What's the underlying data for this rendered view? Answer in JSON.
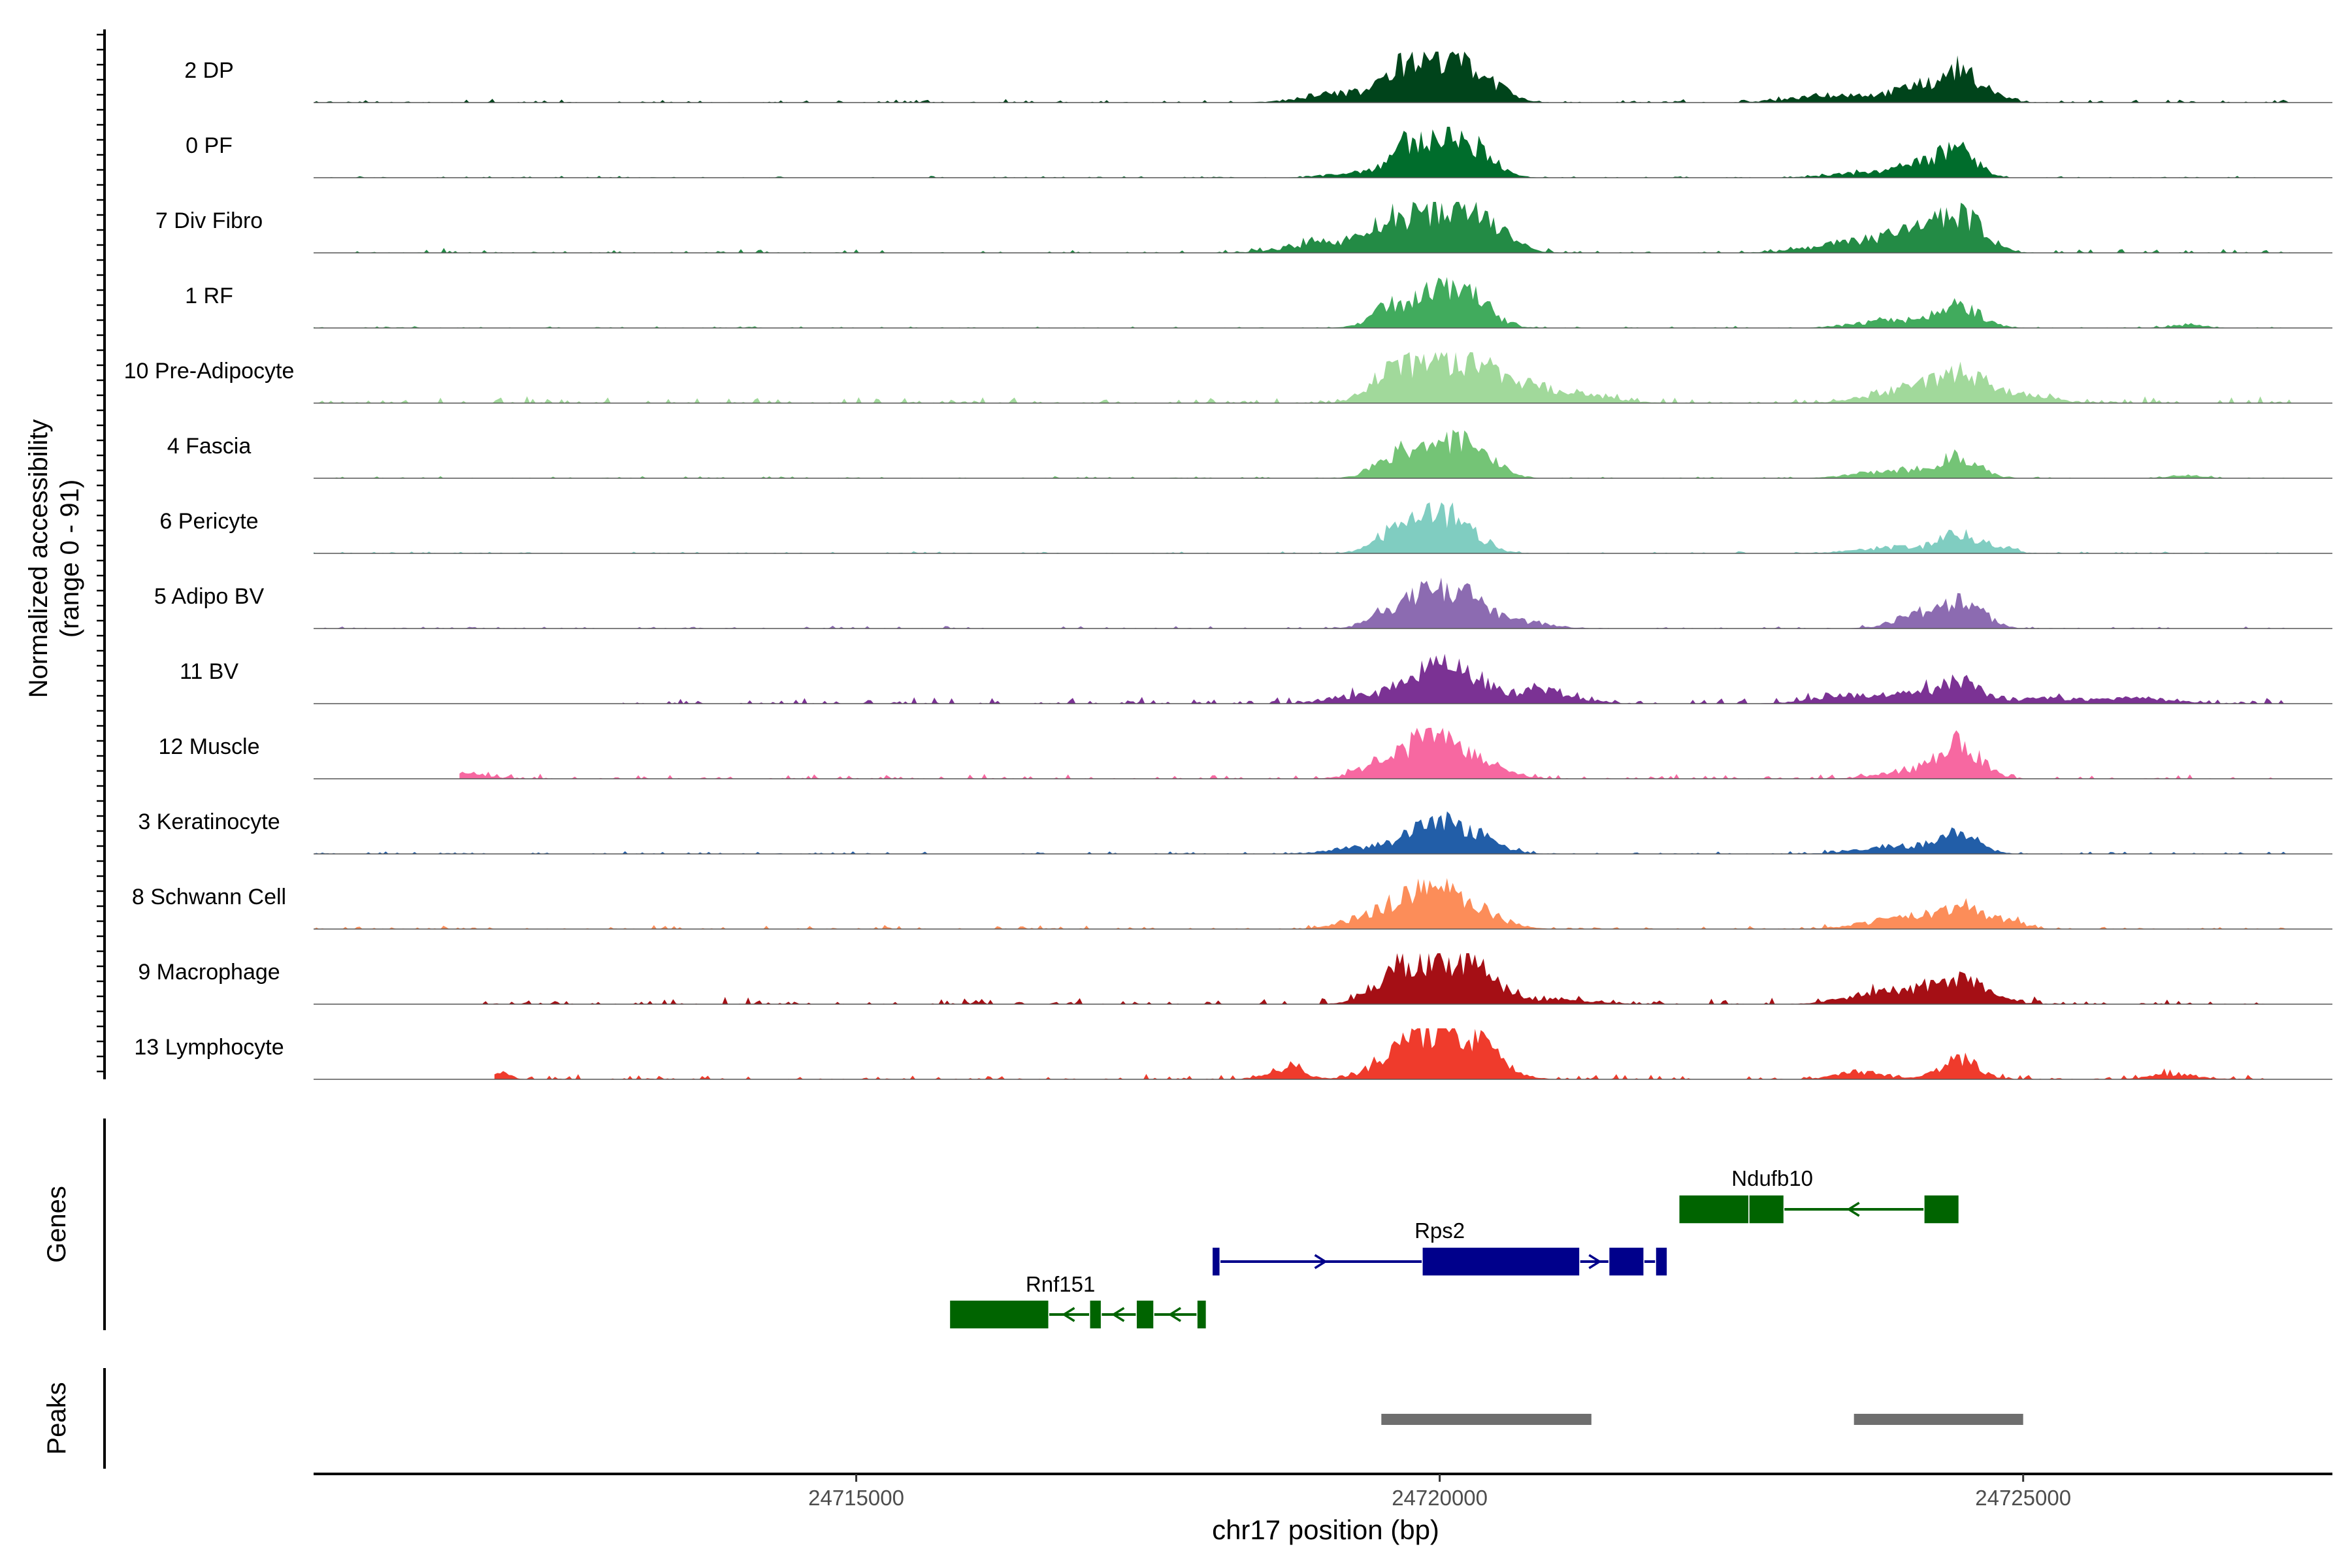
{
  "chart_data": {
    "type": "area",
    "title": "",
    "y_axis_label": "Normalized accessibility",
    "y_axis_range_label": "(range 0 - 91)",
    "ylim": [
      0,
      91
    ],
    "x_axis_label": "chr17 position (bp)",
    "xlim": [
      24710350,
      24727650
    ],
    "x_ticks": [
      24715000,
      24720000,
      24725000
    ],
    "x_tick_labels": [
      "24715000",
      "24720000",
      "24725000"
    ],
    "tracks": [
      {
        "name": "2 DP",
        "color": "#00441b",
        "peaks": [
          [
            24719150,
            0.18,
            300
          ],
          [
            24719700,
            0.4,
            170
          ],
          [
            24720000,
            0.8,
            260
          ],
          [
            24720350,
            0.28,
            200
          ],
          [
            24723450,
            0.15,
            380
          ],
          [
            24724100,
            0.25,
            200
          ],
          [
            24724450,
            0.58,
            160
          ],
          [
            24724700,
            0.12,
            150
          ]
        ],
        "noise": 0.05,
        "span": [
          24710350,
          24727300
        ]
      },
      {
        "name": "0 PF",
        "color": "#006d2c",
        "peaks": [
          [
            24719300,
            0.1,
            250
          ],
          [
            24719700,
            0.45,
            150
          ],
          [
            24720050,
            0.72,
            220
          ],
          [
            24720350,
            0.3,
            160
          ],
          [
            24723800,
            0.12,
            350
          ],
          [
            24724150,
            0.2,
            180
          ],
          [
            24724450,
            0.5,
            150
          ]
        ],
        "noise": 0.03,
        "span": [
          24710350,
          24727300
        ]
      },
      {
        "name": "7 Div Fibro",
        "color": "#238b45",
        "peaks": [
          [
            24719000,
            0.2,
            300
          ],
          [
            24719550,
            0.35,
            200
          ],
          [
            24720000,
            0.75,
            300
          ],
          [
            24720400,
            0.4,
            200
          ],
          [
            24723700,
            0.25,
            400
          ],
          [
            24724150,
            0.35,
            200
          ],
          [
            24724500,
            0.62,
            180
          ]
        ],
        "noise": 0.07,
        "span": [
          24710700,
          24727300
        ]
      },
      {
        "name": "1 RF",
        "color": "#41ab5d",
        "peaks": [
          [
            24719550,
            0.28,
            160
          ],
          [
            24720000,
            0.68,
            260
          ],
          [
            24720300,
            0.3,
            170
          ],
          [
            24723900,
            0.15,
            300
          ],
          [
            24724450,
            0.42,
            180
          ],
          [
            24726400,
            0.06,
            150
          ]
        ],
        "noise": 0.03,
        "span": [
          24710350,
          24727300
        ]
      },
      {
        "name": "10 Pre-Adipocyte",
        "color": "#a1d99b",
        "peaks": [
          [
            24719550,
            0.42,
            170
          ],
          [
            24720000,
            0.75,
            280
          ],
          [
            24720450,
            0.38,
            260
          ],
          [
            24721000,
            0.22,
            350
          ],
          [
            24724100,
            0.3,
            350
          ],
          [
            24724500,
            0.4,
            200
          ],
          [
            24725000,
            0.15,
            250
          ]
        ],
        "noise": 0.1,
        "span": [
          24710350,
          24727300
        ]
      },
      {
        "name": "4 Fascia",
        "color": "#74c476",
        "peaks": [
          [
            24719600,
            0.38,
            170
          ],
          [
            24720050,
            0.6,
            250
          ],
          [
            24720350,
            0.28,
            170
          ],
          [
            24723900,
            0.15,
            300
          ],
          [
            24724450,
            0.4,
            170
          ],
          [
            24726400,
            0.05,
            150
          ]
        ],
        "noise": 0.03,
        "span": [
          24710350,
          24727300
        ]
      },
      {
        "name": "6 Pericyte",
        "color": "#80cdc1",
        "peaks": [
          [
            24719550,
            0.32,
            150
          ],
          [
            24719950,
            0.72,
            200
          ],
          [
            24720250,
            0.3,
            170
          ],
          [
            24723900,
            0.12,
            300
          ],
          [
            24724450,
            0.35,
            160
          ],
          [
            24724800,
            0.12,
            120
          ]
        ],
        "noise": 0.03,
        "span": [
          24710350,
          24727300
        ]
      },
      {
        "name": "5 Adipo BV",
        "color": "#8c6bb1",
        "peaks": [
          [
            24719550,
            0.28,
            170
          ],
          [
            24719950,
            0.65,
            220
          ],
          [
            24720300,
            0.38,
            200
          ],
          [
            24720800,
            0.1,
            200
          ],
          [
            24724100,
            0.28,
            200
          ],
          [
            24724500,
            0.48,
            170
          ]
        ],
        "noise": 0.04,
        "span": [
          24710350,
          24727300
        ]
      },
      {
        "name": "11 BV",
        "color": "#7b3294",
        "peaks": [
          [
            24719300,
            0.15,
            250
          ],
          [
            24719900,
            0.6,
            220
          ],
          [
            24720300,
            0.38,
            200
          ],
          [
            24720900,
            0.25,
            250
          ],
          [
            24723400,
            0.15,
            250
          ],
          [
            24724000,
            0.18,
            250
          ],
          [
            24724450,
            0.38,
            180
          ],
          [
            24725200,
            0.1,
            300
          ],
          [
            24726000,
            0.1,
            300
          ]
        ],
        "noise": 0.1,
        "span": [
          24713000,
          24727300
        ]
      },
      {
        "name": "12 Muscle",
        "color": "#f768a1",
        "peaks": [
          [
            24719500,
            0.3,
            200
          ],
          [
            24719950,
            0.85,
            200
          ],
          [
            24720350,
            0.3,
            220
          ],
          [
            24724000,
            0.15,
            250
          ],
          [
            24724450,
            0.65,
            180
          ],
          [
            24711600,
            0.12,
            200
          ]
        ],
        "noise": 0.07,
        "span": [
          24711600,
          24727300
        ]
      },
      {
        "name": "3 Keratinocyte",
        "color": "#225ea8",
        "peaks": [
          [
            24719300,
            0.12,
            250
          ],
          [
            24719950,
            0.62,
            220
          ],
          [
            24720350,
            0.25,
            200
          ],
          [
            24723900,
            0.15,
            300
          ],
          [
            24724450,
            0.4,
            170
          ]
        ],
        "noise": 0.04,
        "span": [
          24710350,
          24727300
        ]
      },
      {
        "name": "8 Schwann Cell",
        "color": "#fc8d59",
        "peaks": [
          [
            24719500,
            0.3,
            250
          ],
          [
            24719950,
            0.7,
            240
          ],
          [
            24720350,
            0.25,
            220
          ],
          [
            24723900,
            0.18,
            300
          ],
          [
            24724450,
            0.42,
            200
          ],
          [
            24724850,
            0.15,
            150
          ]
        ],
        "noise": 0.06,
        "span": [
          24710350,
          24727300
        ]
      },
      {
        "name": "9 Macrophage",
        "color": "#a50f15",
        "peaks": [
          [
            24719600,
            0.4,
            200
          ],
          [
            24720000,
            0.75,
            280
          ],
          [
            24720350,
            0.35,
            180
          ],
          [
            24723800,
            0.22,
            300
          ],
          [
            24724450,
            0.45,
            250
          ],
          [
            24721000,
            0.1,
            300
          ]
        ],
        "noise": 0.1,
        "span": [
          24711800,
          24727300
        ]
      },
      {
        "name": "13 Lymphocyte",
        "color": "#ef3b2c",
        "peaks": [
          [
            24719600,
            0.3,
            200
          ],
          [
            24720000,
            0.9,
            260
          ],
          [
            24720400,
            0.35,
            200
          ],
          [
            24718700,
            0.22,
            150
          ],
          [
            24723600,
            0.15,
            200
          ],
          [
            24724450,
            0.4,
            160
          ],
          [
            24711950,
            0.12,
            80
          ],
          [
            24726300,
            0.1,
            200
          ]
        ],
        "noise": 0.08,
        "span": [
          24711900,
          24727300
        ]
      }
    ],
    "genes": [
      {
        "name": "Rnf151",
        "color": "#006400",
        "strand": "-",
        "start": 24715800,
        "end": 24718000,
        "exons": [
          [
            24715800,
            24716650
          ],
          [
            24717000,
            24717100
          ],
          [
            24717400,
            24717550
          ],
          [
            24717920,
            24718000
          ]
        ],
        "row": 3
      },
      {
        "name": "Rps2",
        "color": "#00008b",
        "strand": "+",
        "start": 24718050,
        "end": 24721950,
        "exons": [
          [
            24718050,
            24718100
          ],
          [
            24719850,
            24721200
          ],
          [
            24721450,
            24721750
          ],
          [
            24721850,
            24721950
          ]
        ],
        "row": 2
      },
      {
        "name": "Ndufb10",
        "color": "#006400",
        "strand": "-",
        "start": 24722050,
        "end": 24724450,
        "exons": [
          [
            24722050,
            24722650
          ],
          [
            24722650,
            24722950
          ],
          [
            24724150,
            24724450
          ]
        ],
        "row": 1
      }
    ],
    "peaks_track": [
      [
        24719500,
        24721300
      ],
      [
        24723550,
        24725000
      ]
    ],
    "genes_label": "Genes",
    "peaks_label": "Peaks"
  }
}
